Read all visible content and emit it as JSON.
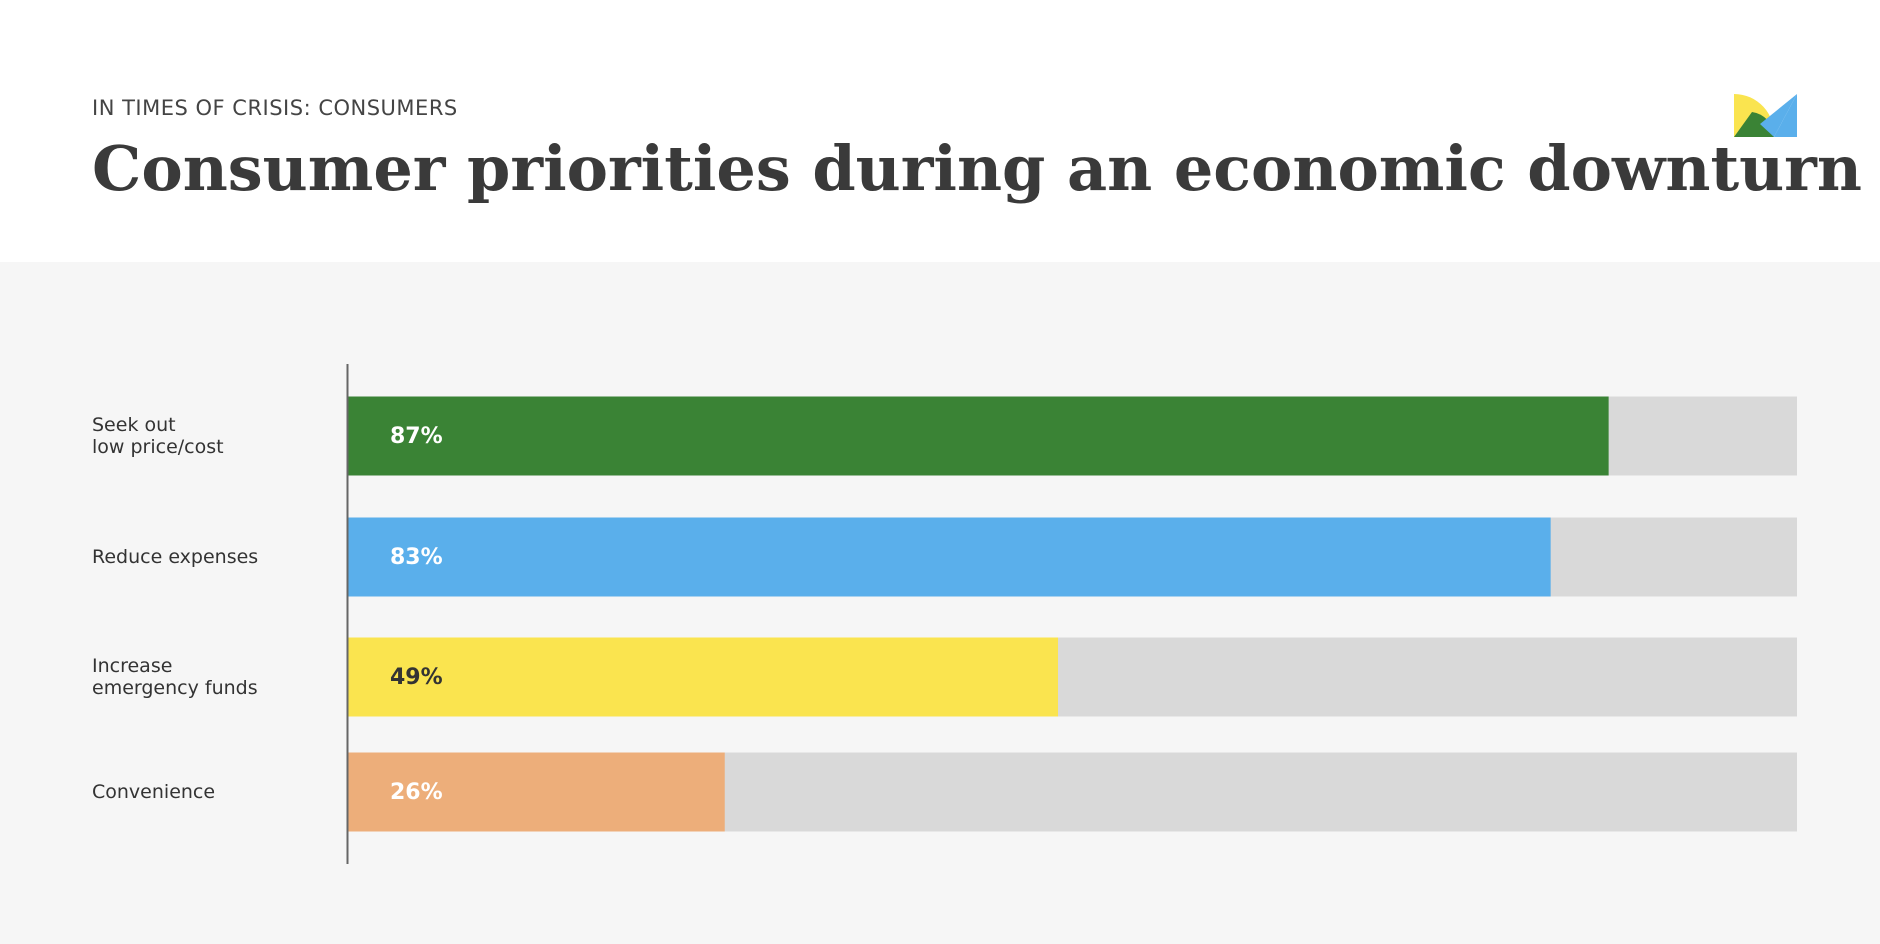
{
  "chart_data": {
    "type": "bar",
    "orientation": "horizontal",
    "kicker": "IN TIMES OF CRISIS: CONSUMERS",
    "title": "Consumer priorities during an economic downturn",
    "categories": [
      "Seek out\nlow price/cost",
      "Reduce expenses",
      "Increase\nemergency funds",
      "Convenience"
    ],
    "values": [
      87,
      83,
      49,
      26
    ],
    "value_labels": [
      "87%",
      "83%",
      "49%",
      "26%"
    ],
    "colors": [
      "#3a8335",
      "#5aafeb",
      "#fae44f",
      "#edae7a"
    ],
    "label_colors": [
      "#ffffff",
      "#ffffff",
      "#333333",
      "#ffffff"
    ],
    "xlim": [
      0,
      100
    ]
  }
}
